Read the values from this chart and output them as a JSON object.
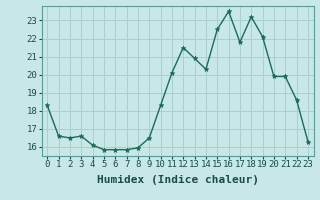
{
  "x": [
    0,
    1,
    2,
    3,
    4,
    5,
    6,
    7,
    8,
    9,
    10,
    11,
    12,
    13,
    14,
    15,
    16,
    17,
    18,
    19,
    20,
    21,
    22,
    23
  ],
  "y": [
    18.3,
    16.6,
    16.5,
    16.6,
    16.1,
    15.85,
    15.85,
    15.85,
    15.95,
    16.5,
    18.3,
    20.1,
    21.5,
    20.9,
    20.3,
    22.5,
    23.5,
    21.8,
    23.2,
    22.1,
    19.9,
    19.9,
    18.6,
    16.3
  ],
  "line_color": "#1a6b5a",
  "marker": "*",
  "marker_color": "#1a6b5a",
  "bg_color": "#c8e8e8",
  "grid_color": "#a8d0d0",
  "xlabel": "Humidex (Indice chaleur)",
  "xlim": [
    -0.5,
    23.5
  ],
  "ylim": [
    15.5,
    23.8
  ],
  "yticks": [
    16,
    17,
    18,
    19,
    20,
    21,
    22,
    23
  ],
  "xticks": [
    0,
    1,
    2,
    3,
    4,
    5,
    6,
    7,
    8,
    9,
    10,
    11,
    12,
    13,
    14,
    15,
    16,
    17,
    18,
    19,
    20,
    21,
    22,
    23
  ],
  "xtick_labels": [
    "0",
    "1",
    "2",
    "3",
    "4",
    "5",
    "6",
    "7",
    "8",
    "9",
    "10",
    "11",
    "12",
    "13",
    "14",
    "15",
    "16",
    "17",
    "18",
    "19",
    "20",
    "21",
    "22",
    "23"
  ],
  "tick_fontsize": 6.5,
  "xlabel_fontsize": 8,
  "linewidth": 1.0,
  "markersize": 3.5
}
